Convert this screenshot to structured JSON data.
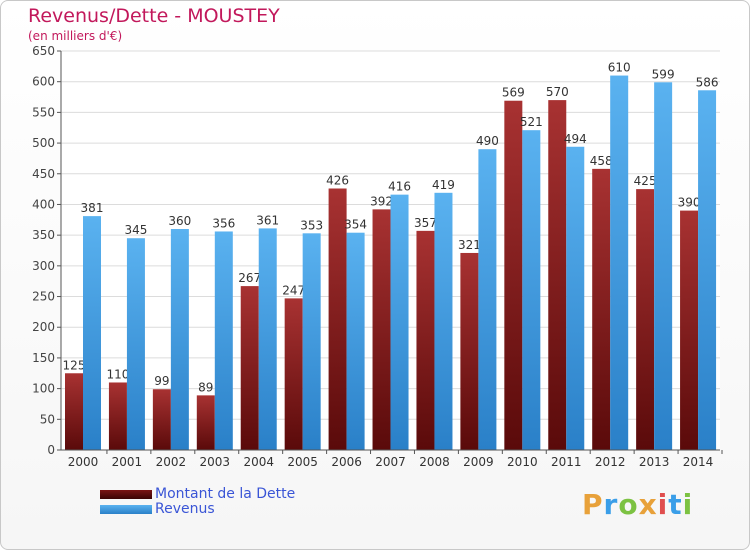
{
  "chart_data": {
    "type": "bar",
    "title": "Revenus/Dette - MOUSTEY",
    "subtitle": "(en milliers d'€)",
    "categories": [
      "2000",
      "2001",
      "2002",
      "2003",
      "2004",
      "2005",
      "2006",
      "2007",
      "2008",
      "2009",
      "2010",
      "2011",
      "2012",
      "2013",
      "2014"
    ],
    "series": [
      {
        "name": "Montant de la Dette",
        "color": "#8b1a1a",
        "values": [
          125,
          110,
          99,
          89,
          267,
          247,
          426,
          392,
          357,
          321,
          569,
          570,
          458,
          425,
          390
        ]
      },
      {
        "name": "Revenus",
        "color": "#3a9ee8",
        "values": [
          381,
          345,
          360,
          356,
          361,
          353,
          354,
          416,
          419,
          490,
          521,
          494,
          610,
          599,
          586
        ]
      }
    ],
    "ylim": [
      0,
      650
    ],
    "yticks": [
      0,
      50,
      100,
      150,
      200,
      250,
      300,
      350,
      400,
      450,
      500,
      550,
      600,
      650
    ],
    "grid": true,
    "legend_position": "bottom-left"
  },
  "logo": {
    "text": "Proxiti",
    "letters": [
      {
        "ch": "P",
        "color": "#e8a13a"
      },
      {
        "ch": "r",
        "color": "#3a9ee8"
      },
      {
        "ch": "o",
        "color": "#7cc242"
      },
      {
        "ch": "x",
        "color": "#e8a13a"
      },
      {
        "ch": "i",
        "color": "#e04e4e"
      },
      {
        "ch": "t",
        "color": "#3a9ee8"
      },
      {
        "ch": "i",
        "color": "#7cc242"
      }
    ]
  }
}
